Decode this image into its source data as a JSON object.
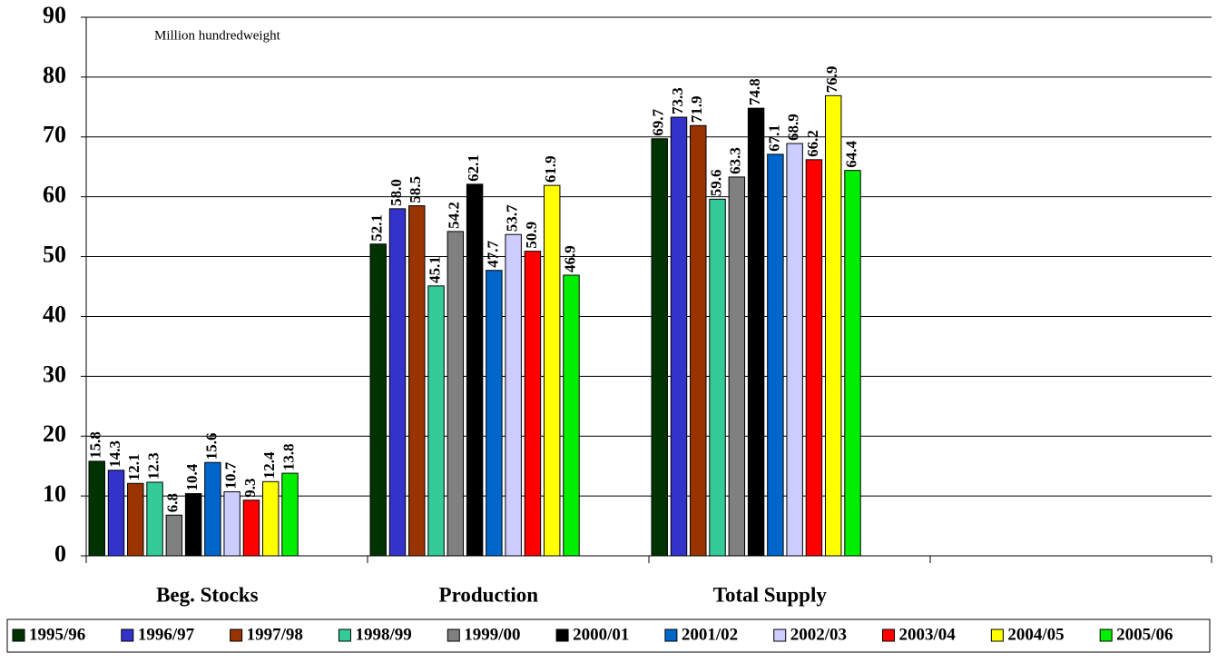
{
  "chart_data": {
    "type": "bar",
    "annotation": "Million hundredweight",
    "categories": [
      "Beg. Stocks",
      "Production",
      "Total Supply",
      null
    ],
    "series": [
      {
        "name": "1995/96",
        "color": "#003300",
        "values": [
          15.8,
          52.1,
          69.7,
          null
        ]
      },
      {
        "name": "1996/97",
        "color": "#3333cc",
        "values": [
          14.3,
          58.0,
          73.3,
          null
        ],
        "value_labels": [
          "14.3",
          "58.0",
          "73.3",
          null
        ]
      },
      {
        "name": "1997/98",
        "color": "#993300",
        "values": [
          12.1,
          58.5,
          71.9,
          null
        ]
      },
      {
        "name": "1998/99",
        "color": "#33cc99",
        "values": [
          12.3,
          45.1,
          59.6,
          null
        ]
      },
      {
        "name": "1999/00",
        "color": "#808080",
        "values": [
          6.8,
          54.2,
          63.3,
          null
        ]
      },
      {
        "name": "2000/01",
        "color": "#000000",
        "values": [
          10.4,
          62.1,
          74.8,
          null
        ]
      },
      {
        "name": "2001/02",
        "color": "#0066cc",
        "values": [
          15.6,
          47.7,
          67.1,
          null
        ]
      },
      {
        "name": "2002/03",
        "color": "#ccccff",
        "values": [
          10.7,
          53.7,
          68.9,
          null
        ]
      },
      {
        "name": "2003/04",
        "color": "#ff0000",
        "values": [
          9.3,
          50.9,
          66.2,
          null
        ]
      },
      {
        "name": "2004/05",
        "color": "#ffff00",
        "values": [
          12.4,
          61.9,
          76.9,
          null
        ]
      },
      {
        "name": "2005/06",
        "color": "#00ee00",
        "values": [
          13.8,
          46.9,
          64.4,
          null
        ]
      }
    ],
    "ylim": [
      0,
      90
    ],
    "yticks": [
      0,
      10,
      20,
      30,
      40,
      50,
      60,
      70,
      80,
      90
    ],
    "grid": true,
    "legend": "bottom"
  }
}
